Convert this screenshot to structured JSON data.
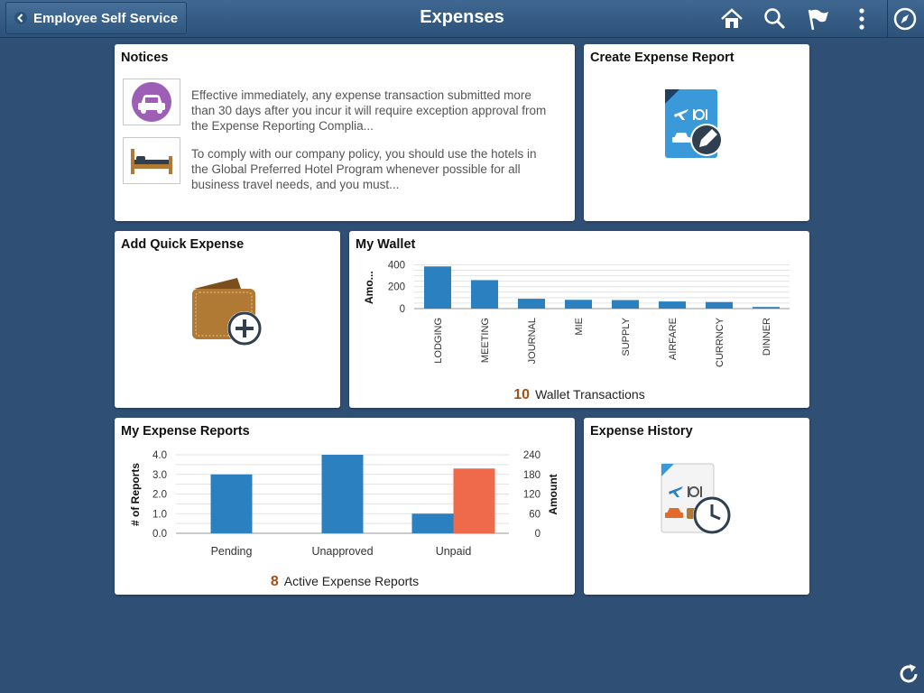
{
  "header": {
    "back_label": "Employee Self Service",
    "title": "Expenses",
    "icons": [
      "home-icon",
      "search-icon",
      "flag-icon",
      "more-icon",
      "navbar-compass-icon"
    ]
  },
  "tiles": {
    "notices": {
      "title": "Notices",
      "items": [
        {
          "icon": "car-icon",
          "text": "Effective immediately, any expense transaction submitted more than 30 days after you incur it will require exception approval from the Expense Reporting Complia..."
        },
        {
          "icon": "bed-icon",
          "text": "To comply with our company policy, you should use the hotels in the Global Preferred Hotel Program whenever possible for all business travel needs, and you must..."
        }
      ]
    },
    "create_report": {
      "title": "Create Expense Report"
    },
    "quick_expense": {
      "title": "Add Quick Expense"
    },
    "wallet": {
      "title": "My Wallet",
      "count": "10",
      "count_label": "Wallet Transactions"
    },
    "reports": {
      "title": "My Expense Reports",
      "count": "8",
      "count_label": "Active Expense Reports"
    },
    "history": {
      "title": "Expense History"
    }
  },
  "chart_data": [
    {
      "type": "bar",
      "ylabel": "Amo...",
      "categories": [
        "LODGING",
        "MEETING",
        "JOURNAL",
        "MIE",
        "SUPPLY",
        "AIRFARE",
        "CURRNCY",
        "DINNER"
      ],
      "values": [
        385,
        260,
        90,
        80,
        78,
        65,
        60,
        15
      ],
      "yticks": [
        0,
        200,
        400
      ],
      "ylim": [
        0,
        420
      ],
      "grid": true,
      "color": "#2b80c0"
    },
    {
      "type": "bar",
      "categories": [
        "Pending",
        "Unapproved",
        "Unpaid"
      ],
      "ylabel": "# of Reports",
      "y2label": "Amount",
      "yticks": [
        "0.0",
        "1.0",
        "2.0",
        "3.0",
        "4.0"
      ],
      "y2ticks": [
        "0",
        "60",
        "120",
        "180",
        "240"
      ],
      "ylim": [
        0,
        4
      ],
      "y2lim": [
        0,
        240
      ],
      "series": [
        {
          "values": [
            3,
            4,
            1
          ],
          "axis": "left",
          "color": "#2b80c0"
        },
        {
          "values": [
            0,
            0,
            198
          ],
          "axis": "right",
          "color": "#ef6a4a"
        }
      ],
      "grid": true
    }
  ],
  "colors": {
    "background": "#2f4f74",
    "accent": "#2b80c0",
    "highlight": "#ef6a4a",
    "count": "#a0521a"
  }
}
